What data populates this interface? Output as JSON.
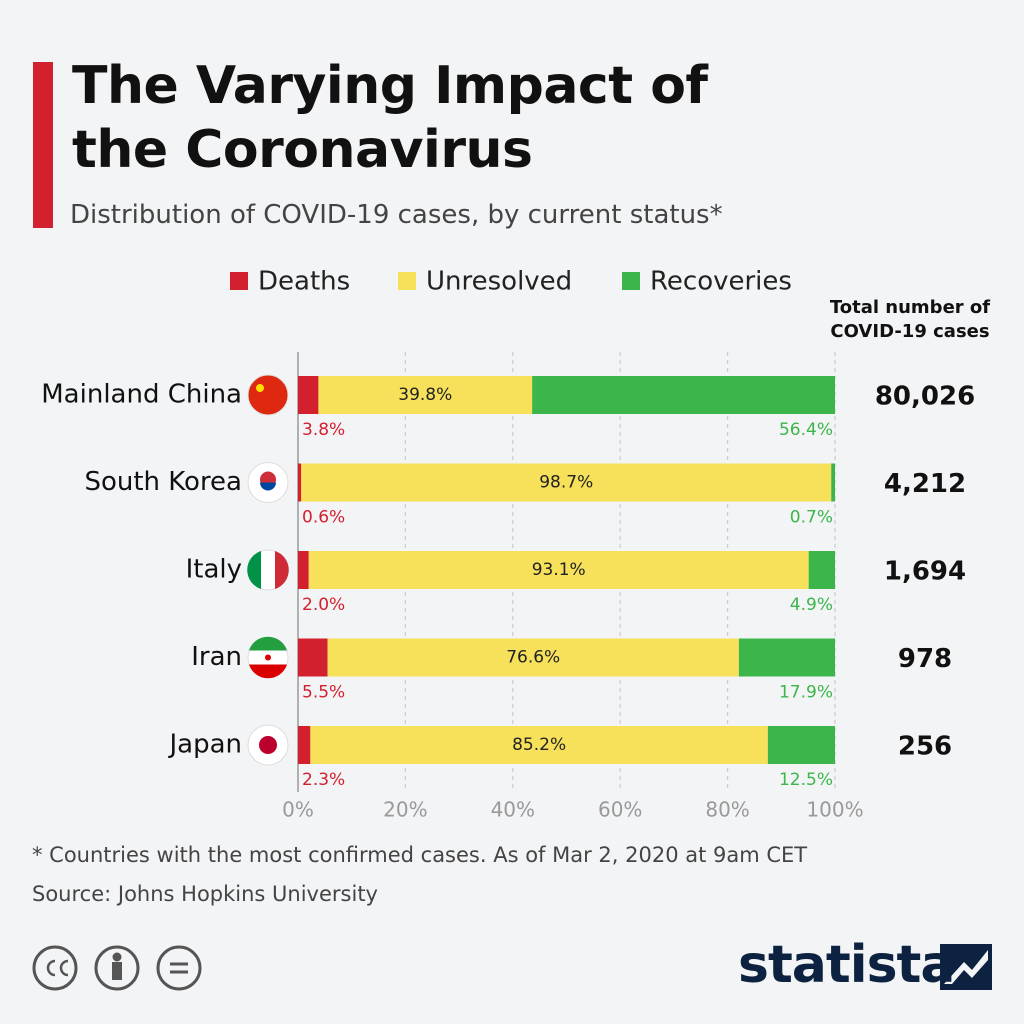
{
  "chart_data": {
    "type": "stacked_barh",
    "title": "The Varying Impact of the Coronavirus",
    "subtitle": "Distribution of COVID-19 cases, by current status*",
    "categories": [
      "Mainland China",
      "South Korea",
      "Italy",
      "Iran",
      "Japan"
    ],
    "series": [
      {
        "name": "Deaths",
        "color": "#d3202f",
        "values": [
          3.8,
          0.6,
          2.0,
          5.5,
          2.3
        ],
        "value_labels": [
          "3.8%",
          "0.6%",
          "2.0%",
          "5.5%",
          "2.3%"
        ]
      },
      {
        "name": "Unresolved",
        "color": "#f7e15a",
        "values": [
          39.8,
          98.7,
          93.1,
          76.6,
          85.2
        ],
        "value_labels": [
          "39.8%",
          "98.7%",
          "93.1%",
          "76.6%",
          "85.2%"
        ]
      },
      {
        "name": "Recoveries",
        "color": "#3cb54a",
        "values": [
          56.4,
          0.7,
          4.9,
          17.9,
          12.5
        ],
        "value_labels": [
          "56.4%",
          "0.7%",
          "4.9%",
          "17.9%",
          "12.5%"
        ]
      }
    ],
    "xlim": [
      0,
      100
    ],
    "xticks": [
      {
        "value": 0,
        "label": "0%"
      },
      {
        "value": 20,
        "label": "20%"
      },
      {
        "value": 40,
        "label": "40%"
      },
      {
        "value": 60,
        "label": "60%"
      },
      {
        "value": 80,
        "label": "80%"
      },
      {
        "value": 100,
        "label": "100%"
      }
    ],
    "grid": true,
    "totals": {
      "title": "Total number of COVID-19 cases",
      "values": [
        80026,
        4212,
        1694,
        978,
        256
      ],
      "value_labels": [
        "80,026",
        "4,212",
        "1,694",
        "978",
        "256"
      ]
    },
    "footnote": "* Countries with the most confirmed cases. As of Mar 2, 2020 at 9am CET",
    "source": "Source: Johns Hopkins University",
    "brand": "statista"
  }
}
